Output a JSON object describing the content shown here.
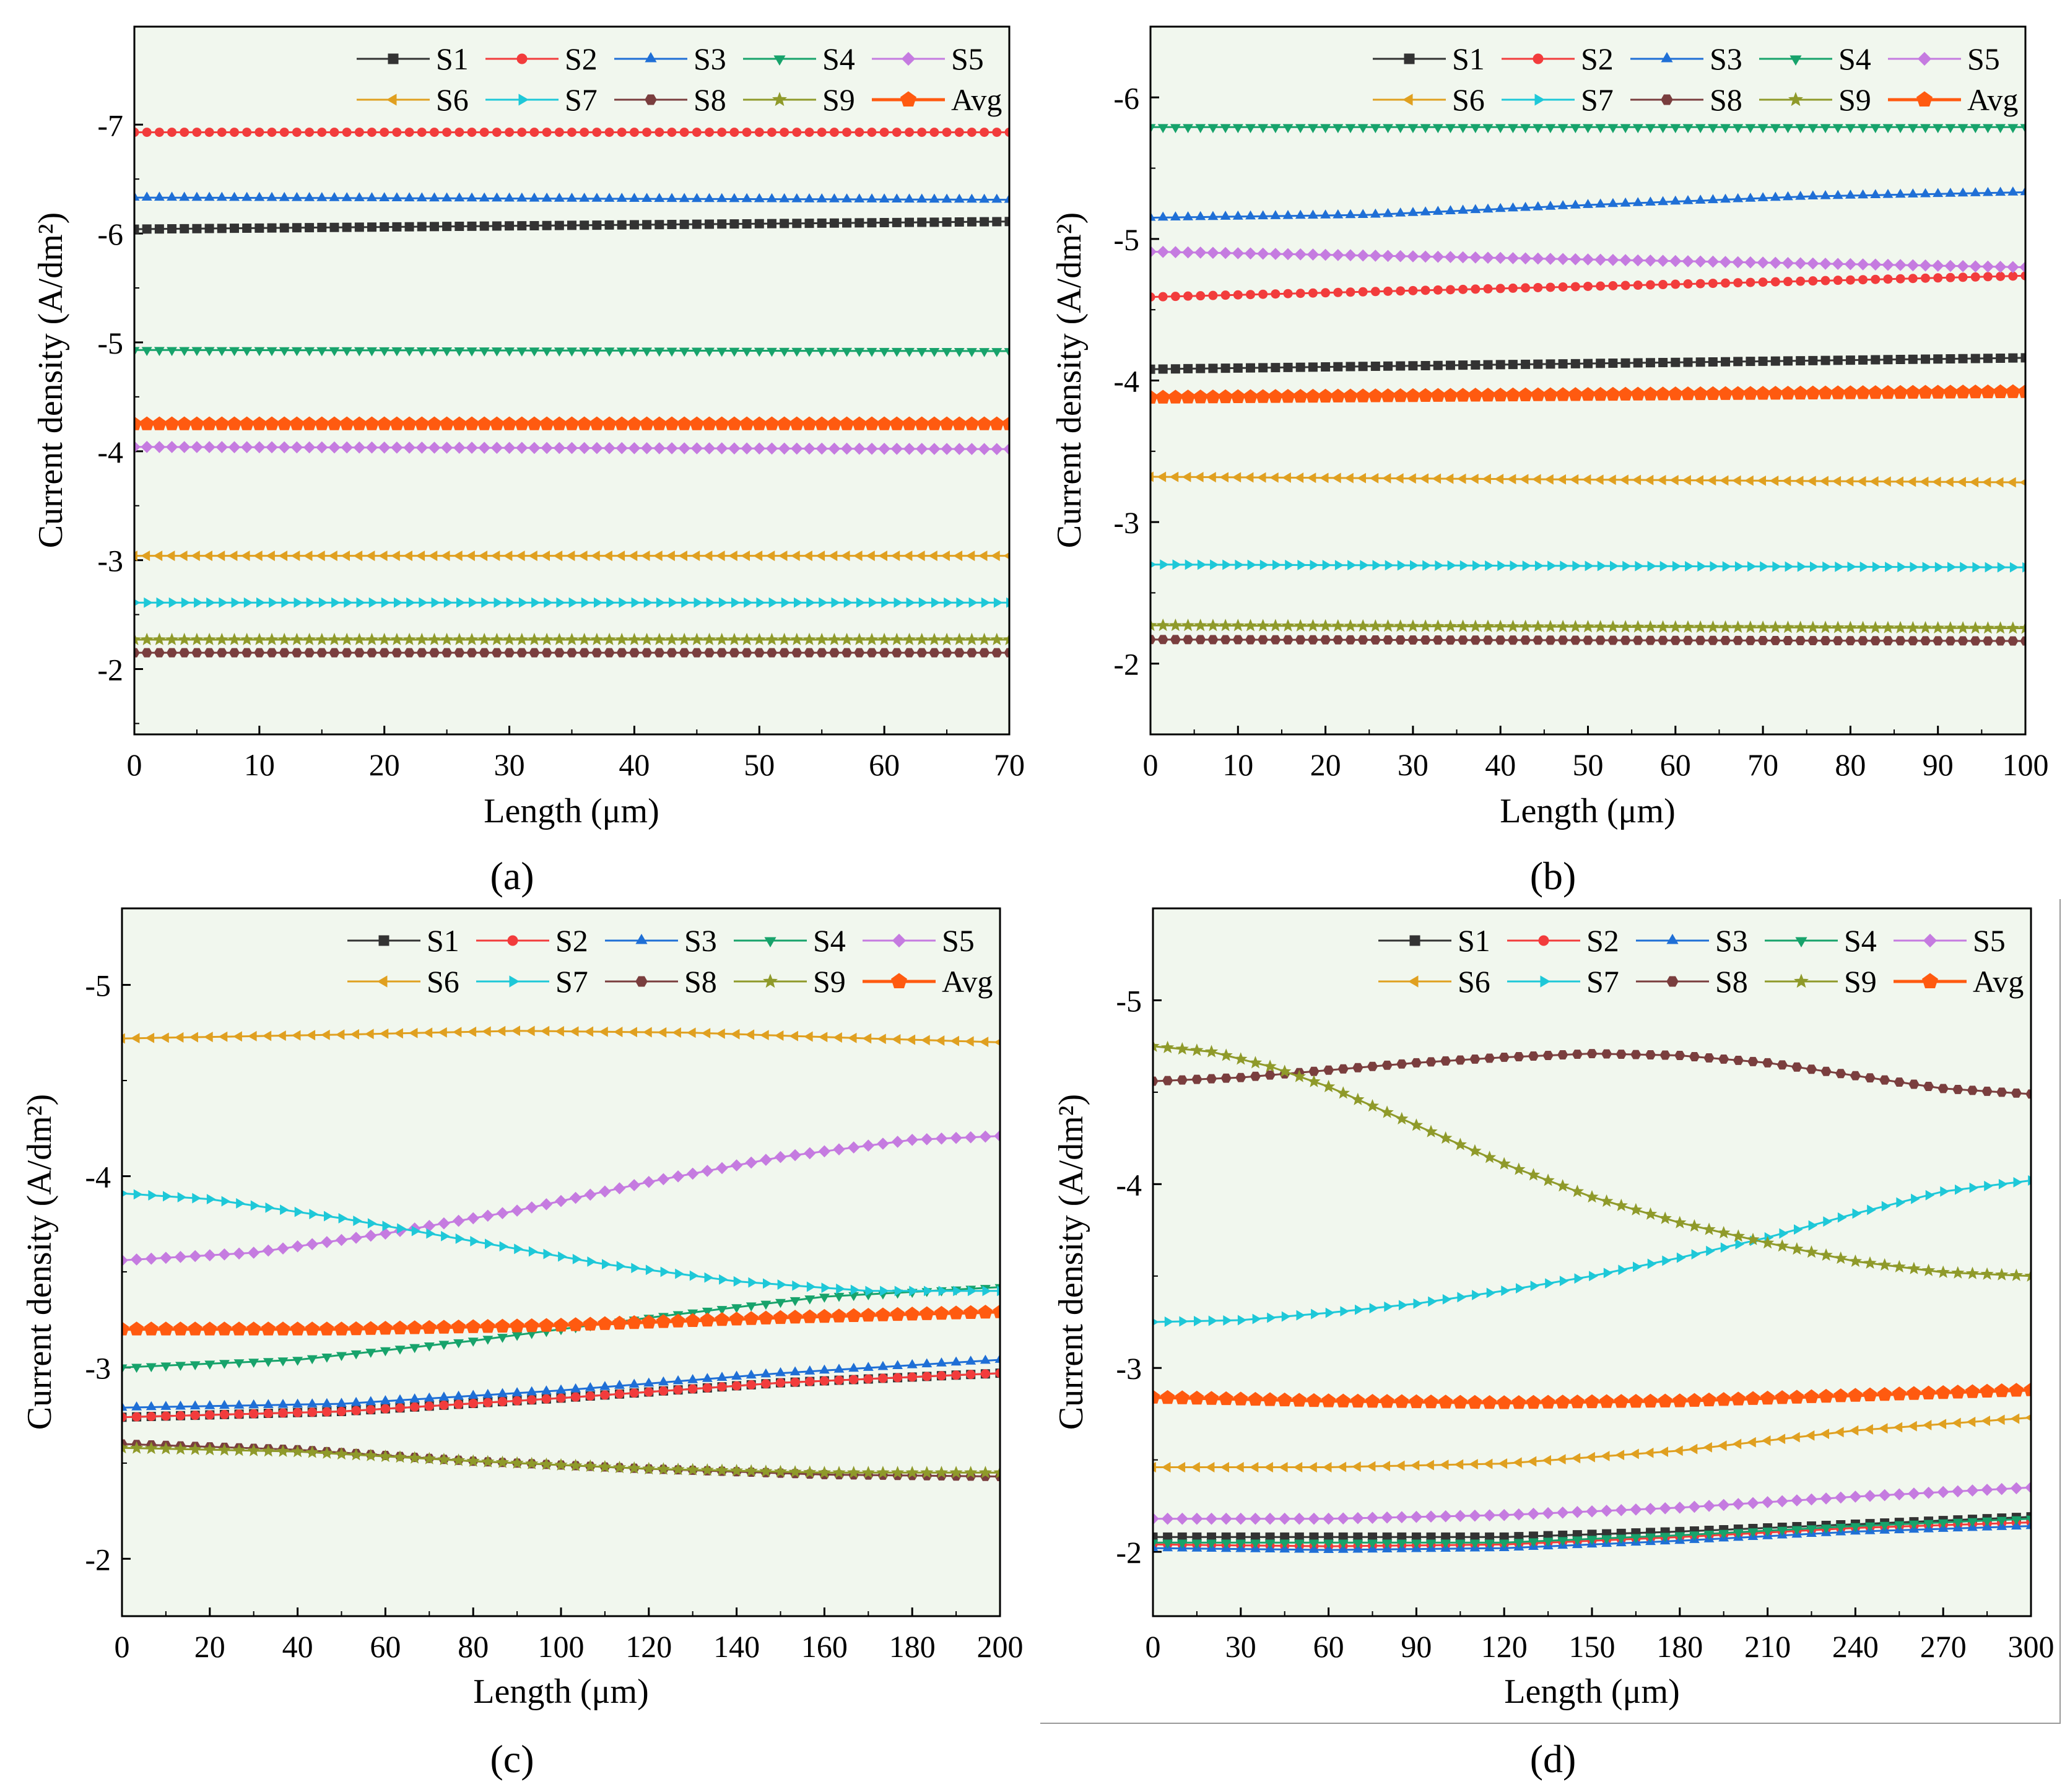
{
  "figure": {
    "series_names": [
      "S1",
      "S2",
      "S3",
      "S4",
      "S5",
      "S6",
      "S7",
      "S8",
      "S9",
      "Avg"
    ],
    "colors": {
      "S1": "#333333",
      "S2": "#f23c3c",
      "S3": "#1f6fd6",
      "S4": "#17a36b",
      "S5": "#c57be0",
      "S6": "#e0a020",
      "S7": "#1ec8d8",
      "S8": "#7a3e3e",
      "S9": "#8f9a2a",
      "Avg": "#ff5a10",
      "panel_bg": "#f1f7ee"
    },
    "markers": {
      "S1": "square",
      "S2": "circle",
      "S3": "triangle-up",
      "S4": "triangle-down",
      "S5": "diamond",
      "S6": "triangle-left",
      "S7": "triangle-right",
      "S8": "hexagon",
      "S9": "star",
      "Avg": "pentagon"
    }
  },
  "chart_data": [
    {
      "type": "line",
      "panel_label": "(a)",
      "xlabel": "Length (μm)",
      "ylabel": "Current density (A/dm²)",
      "xlim": [
        0,
        70
      ],
      "xticks": [
        0,
        10,
        20,
        30,
        40,
        50,
        60,
        70
      ],
      "ylim": [
        -1.4,
        -7.9
      ],
      "yticks": [
        -2,
        -3,
        -4,
        -5,
        -6,
        -7
      ],
      "legend": "top-right",
      "series": [
        {
          "name": "S1",
          "x": [
            0,
            70
          ],
          "values": [
            -6.04,
            -6.11
          ]
        },
        {
          "name": "S2",
          "x": [
            0,
            70
          ],
          "values": [
            -6.93,
            -6.93
          ]
        },
        {
          "name": "S3",
          "x": [
            0,
            70
          ],
          "values": [
            -6.33,
            -6.31
          ]
        },
        {
          "name": "S4",
          "x": [
            0,
            70
          ],
          "values": [
            -4.93,
            -4.92
          ]
        },
        {
          "name": "S5",
          "x": [
            0,
            70
          ],
          "values": [
            -4.04,
            -4.02
          ]
        },
        {
          "name": "S6",
          "x": [
            0,
            70
          ],
          "values": [
            -3.04,
            -3.04
          ]
        },
        {
          "name": "S7",
          "x": [
            0,
            70
          ],
          "values": [
            -2.61,
            -2.61
          ]
        },
        {
          "name": "S8",
          "x": [
            0,
            70
          ],
          "values": [
            -2.15,
            -2.15
          ]
        },
        {
          "name": "S9",
          "x": [
            0,
            70
          ],
          "values": [
            -2.27,
            -2.27
          ]
        },
        {
          "name": "Avg",
          "x": [
            0,
            70
          ],
          "values": [
            -4.25,
            -4.25
          ]
        }
      ]
    },
    {
      "type": "line",
      "panel_label": "(b)",
      "xlabel": "Length (μm)",
      "ylabel": "Current density (A/dm²)",
      "xlim": [
        0,
        100
      ],
      "xticks": [
        0,
        10,
        20,
        30,
        40,
        50,
        60,
        70,
        80,
        90,
        100
      ],
      "ylim": [
        -1.5,
        -6.5
      ],
      "yticks": [
        -2,
        -3,
        -4,
        -5,
        -6
      ],
      "legend": "top-right",
      "series": [
        {
          "name": "S1",
          "x": [
            0,
            100
          ],
          "values": [
            -4.08,
            -4.16
          ]
        },
        {
          "name": "S2",
          "x": [
            0,
            100
          ],
          "values": [
            -4.59,
            -4.74
          ]
        },
        {
          "name": "S3",
          "x": [
            0,
            25,
            50,
            75,
            100
          ],
          "values": [
            -5.15,
            -5.17,
            -5.24,
            -5.3,
            -5.33
          ]
        },
        {
          "name": "S4",
          "x": [
            0,
            100
          ],
          "values": [
            -5.79,
            -5.79
          ]
        },
        {
          "name": "S5",
          "x": [
            0,
            100
          ],
          "values": [
            -4.91,
            -4.8
          ]
        },
        {
          "name": "S6",
          "x": [
            0,
            100
          ],
          "values": [
            -3.32,
            -3.28
          ]
        },
        {
          "name": "S7",
          "x": [
            0,
            100
          ],
          "values": [
            -2.7,
            -2.68
          ]
        },
        {
          "name": "S8",
          "x": [
            0,
            100
          ],
          "values": [
            -2.17,
            -2.16
          ]
        },
        {
          "name": "S9",
          "x": [
            0,
            100
          ],
          "values": [
            -2.27,
            -2.25
          ]
        },
        {
          "name": "Avg",
          "x": [
            0,
            100
          ],
          "values": [
            -3.88,
            -3.92
          ]
        }
      ]
    },
    {
      "type": "line",
      "panel_label": "(c)",
      "xlabel": "Length (μm)",
      "ylabel": "Current density (A/dm²)",
      "xlim": [
        0,
        200
      ],
      "xticks": [
        0,
        20,
        40,
        60,
        80,
        100,
        120,
        140,
        160,
        180,
        200
      ],
      "ylim": [
        -1.7,
        -5.4
      ],
      "yticks": [
        -2,
        -3,
        -4,
        -5
      ],
      "legend": "top-right",
      "series": [
        {
          "name": "S1",
          "x": [
            0,
            50,
            100,
            150,
            200
          ],
          "values": [
            -2.74,
            -2.77,
            -2.84,
            -2.92,
            -2.97
          ]
        },
        {
          "name": "S2",
          "x": [
            0,
            50,
            100,
            150,
            200
          ],
          "values": [
            -2.74,
            -2.77,
            -2.84,
            -2.92,
            -2.97
          ]
        },
        {
          "name": "S3",
          "x": [
            0,
            50,
            100,
            150,
            200
          ],
          "values": [
            -2.79,
            -2.81,
            -2.88,
            -2.97,
            -3.04
          ]
        },
        {
          "name": "S4",
          "x": [
            0,
            40,
            80,
            120,
            160,
            200
          ],
          "values": [
            -3.0,
            -3.04,
            -3.14,
            -3.26,
            -3.37,
            -3.42
          ]
        },
        {
          "name": "S5",
          "x": [
            0,
            30,
            60,
            90,
            120,
            150,
            180,
            200
          ],
          "values": [
            -3.56,
            -3.6,
            -3.7,
            -3.82,
            -3.97,
            -4.1,
            -4.19,
            -4.21
          ]
        },
        {
          "name": "S6",
          "x": [
            0,
            50,
            90,
            130,
            170,
            200
          ],
          "values": [
            -4.72,
            -4.74,
            -4.76,
            -4.75,
            -4.72,
            -4.7
          ]
        },
        {
          "name": "S7",
          "x": [
            0,
            20,
            50,
            80,
            110,
            140,
            170,
            200
          ],
          "values": [
            -3.91,
            -3.88,
            -3.78,
            -3.66,
            -3.54,
            -3.45,
            -3.4,
            -3.4
          ]
        },
        {
          "name": "S8",
          "x": [
            0,
            40,
            80,
            120,
            160,
            200
          ],
          "values": [
            -2.6,
            -2.57,
            -2.51,
            -2.47,
            -2.44,
            -2.43
          ]
        },
        {
          "name": "S9",
          "x": [
            0,
            40,
            80,
            120,
            160,
            200
          ],
          "values": [
            -2.58,
            -2.56,
            -2.51,
            -2.47,
            -2.45,
            -2.45
          ]
        },
        {
          "name": "Avg",
          "x": [
            0,
            50,
            100,
            150,
            200
          ],
          "values": [
            -3.2,
            -3.2,
            -3.22,
            -3.26,
            -3.29
          ]
        }
      ]
    },
    {
      "type": "line",
      "panel_label": "(d)",
      "xlabel": "Length (μm)",
      "ylabel": "Current density (A/dm²)",
      "xlim": [
        0,
        300
      ],
      "xticks": [
        0,
        30,
        60,
        90,
        120,
        150,
        180,
        210,
        240,
        270,
        300
      ],
      "ylim": [
        -1.65,
        -5.5
      ],
      "yticks": [
        -2,
        -3,
        -4,
        -5
      ],
      "legend": "top-right",
      "series": [
        {
          "name": "S1",
          "x": [
            0,
            60,
            120,
            180,
            240,
            300
          ],
          "values": [
            -2.08,
            -2.08,
            -2.08,
            -2.11,
            -2.15,
            -2.19
          ]
        },
        {
          "name": "S2",
          "x": [
            0,
            60,
            120,
            180,
            240,
            300
          ],
          "values": [
            -2.04,
            -2.03,
            -2.04,
            -2.08,
            -2.13,
            -2.16
          ]
        },
        {
          "name": "S3",
          "x": [
            0,
            60,
            120,
            180,
            240,
            300
          ],
          "values": [
            -2.02,
            -2.01,
            -2.02,
            -2.06,
            -2.11,
            -2.14
          ]
        },
        {
          "name": "S4",
          "x": [
            0,
            60,
            120,
            180,
            240,
            300
          ],
          "values": [
            -2.05,
            -2.05,
            -2.05,
            -2.09,
            -2.14,
            -2.18
          ]
        },
        {
          "name": "S5",
          "x": [
            0,
            60,
            120,
            180,
            240,
            300
          ],
          "values": [
            -2.18,
            -2.18,
            -2.2,
            -2.24,
            -2.3,
            -2.35
          ]
        },
        {
          "name": "S6",
          "x": [
            0,
            60,
            120,
            180,
            240,
            300
          ],
          "values": [
            -2.46,
            -2.46,
            -2.48,
            -2.55,
            -2.66,
            -2.73
          ]
        },
        {
          "name": "S7",
          "x": [
            0,
            30,
            60,
            90,
            120,
            150,
            180,
            210,
            240,
            270,
            300
          ],
          "values": [
            -3.25,
            -3.26,
            -3.3,
            -3.35,
            -3.42,
            -3.5,
            -3.6,
            -3.71,
            -3.84,
            -3.96,
            -4.02
          ]
        },
        {
          "name": "S8",
          "x": [
            0,
            30,
            60,
            90,
            120,
            150,
            180,
            210,
            240,
            270,
            300
          ],
          "values": [
            -4.56,
            -4.58,
            -4.62,
            -4.66,
            -4.69,
            -4.71,
            -4.7,
            -4.66,
            -4.59,
            -4.52,
            -4.49
          ]
        },
        {
          "name": "S9",
          "x": [
            0,
            20,
            40,
            60,
            90,
            120,
            150,
            180,
            210,
            240,
            270,
            300
          ],
          "values": [
            -4.75,
            -4.72,
            -4.64,
            -4.53,
            -4.32,
            -4.11,
            -3.93,
            -3.79,
            -3.68,
            -3.58,
            -3.52,
            -3.5
          ]
        },
        {
          "name": "Avg",
          "x": [
            0,
            60,
            120,
            180,
            240,
            300
          ],
          "values": [
            -2.84,
            -2.82,
            -2.81,
            -2.82,
            -2.85,
            -2.88
          ]
        }
      ]
    }
  ]
}
